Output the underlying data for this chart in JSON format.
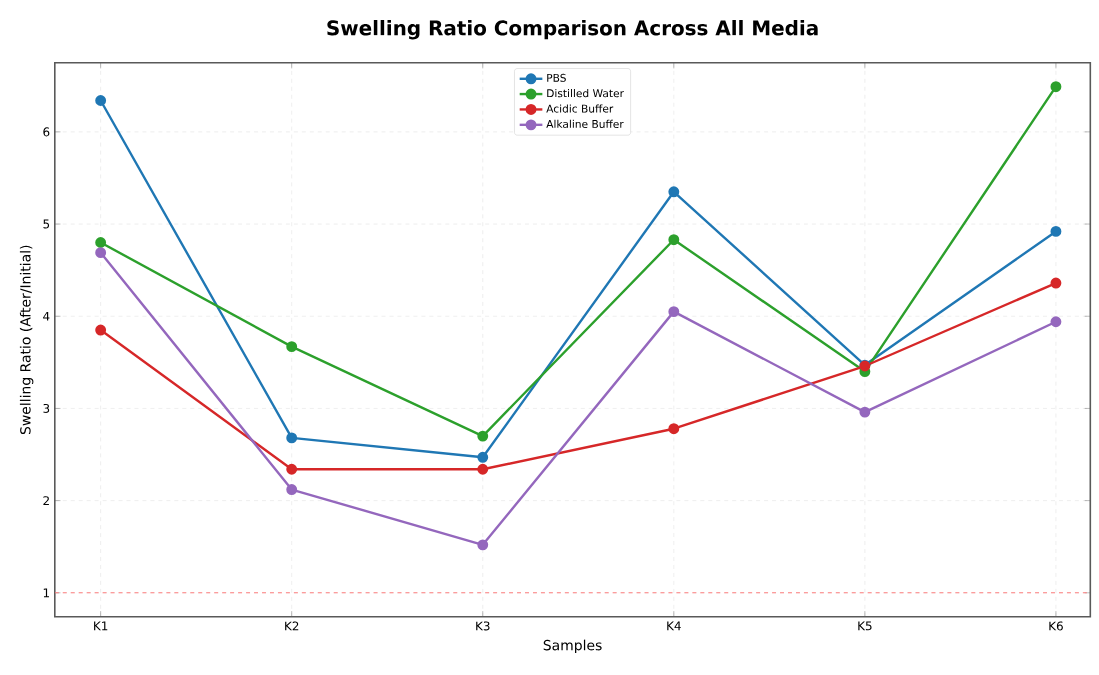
{
  "chart_data": {
    "type": "line",
    "title": "Swelling Ratio Comparison Across All Media",
    "xlabel": "Samples",
    "ylabel": "Swelling Ratio (After/Initial)",
    "categories": [
      "K1",
      "K2",
      "K3",
      "K4",
      "K5",
      "K6"
    ],
    "series": [
      {
        "name": "PBS",
        "color": "#1f77b4",
        "values": [
          6.34,
          2.68,
          2.47,
          5.35,
          3.47,
          4.92
        ]
      },
      {
        "name": "Distilled Water",
        "color": "#2ca02c",
        "values": [
          4.8,
          3.67,
          2.7,
          4.83,
          3.4,
          6.49
        ]
      },
      {
        "name": "Acidic Buffer",
        "color": "#d62728",
        "values": [
          3.85,
          2.34,
          2.34,
          2.78,
          3.46,
          4.36
        ]
      },
      {
        "name": "Alkaline Buffer",
        "color": "#9467bd",
        "values": [
          4.69,
          2.12,
          1.52,
          4.05,
          2.96,
          3.94
        ]
      }
    ],
    "ylim": [
      0.74,
      6.75
    ],
    "yticks": [
      1,
      2,
      3,
      4,
      5,
      6
    ],
    "ref_lines": [
      {
        "axis": "y",
        "value": 1,
        "color": "#ff8080",
        "line_style": "dashed"
      }
    ],
    "grid": true,
    "legend": "top",
    "marker": "circle",
    "line_style": "solid"
  }
}
